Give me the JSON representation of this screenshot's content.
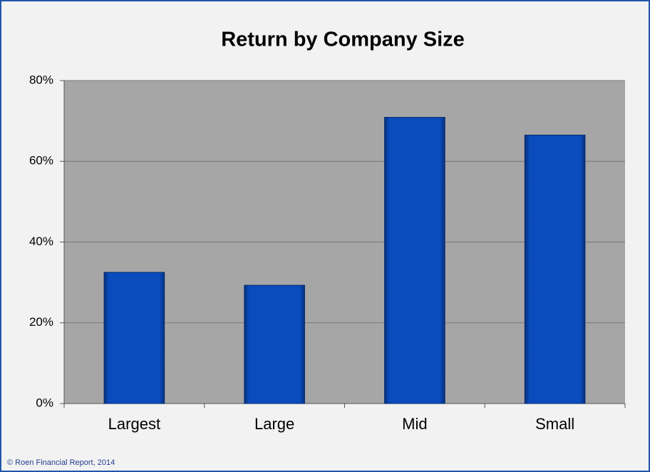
{
  "chart_data": {
    "type": "bar",
    "title": "Return by Company Size",
    "categories": [
      "Largest",
      "Large",
      "Mid",
      "Small"
    ],
    "values": [
      32.5,
      29.3,
      70.9,
      66.5
    ],
    "color": "#0a4bbd",
    "ylim": [
      0,
      80
    ],
    "yticks": [
      {
        "value": 0,
        "label": "0%"
      },
      {
        "value": 20,
        "label": "20%"
      },
      {
        "value": 40,
        "label": "40%"
      },
      {
        "value": 60,
        "label": "60%"
      },
      {
        "value": 80,
        "label": "80%"
      }
    ],
    "grid": true,
    "note": "© Roen Financial Report, 2014"
  }
}
